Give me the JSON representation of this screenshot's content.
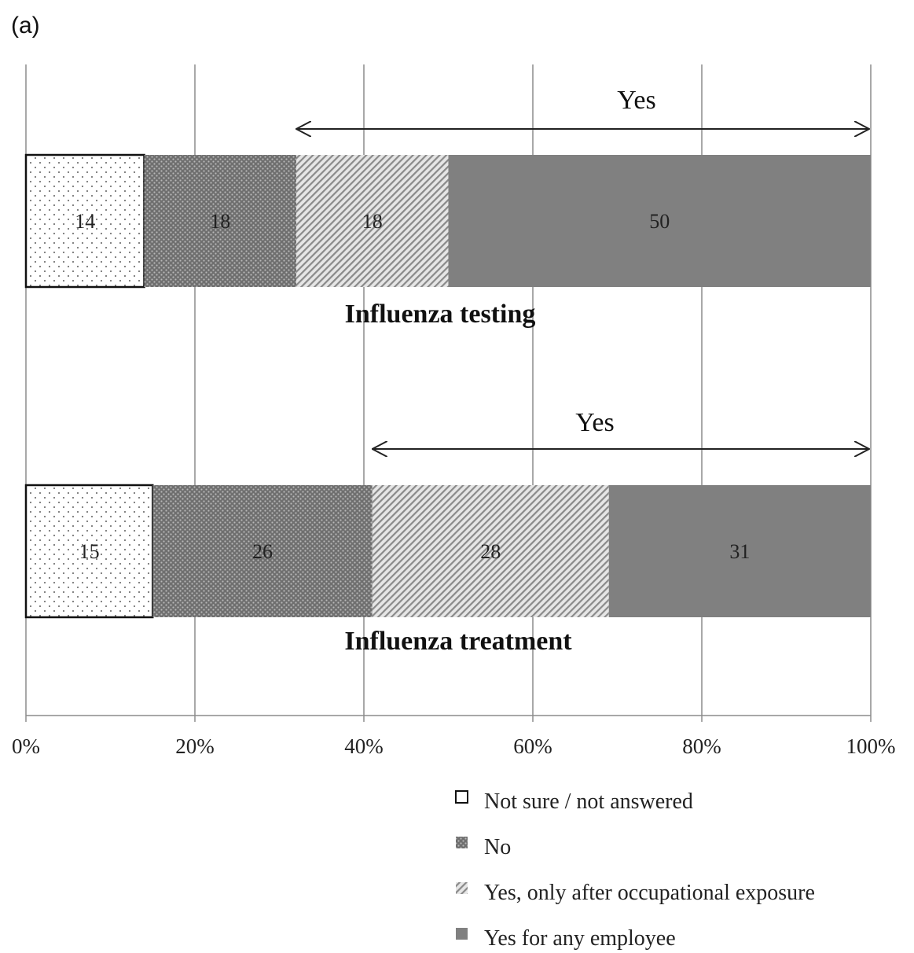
{
  "panel_label": "(a)",
  "chart_data": {
    "type": "bar",
    "orientation": "horizontal",
    "stacked": true,
    "normalized_percent": true,
    "title": "",
    "xlabel": "",
    "ylabel": "",
    "xlim": [
      0,
      100
    ],
    "x_ticks": [
      "0%",
      "20%",
      "40%",
      "60%",
      "80%",
      "100%"
    ],
    "grid": "vertical",
    "legend_position": "bottom-right",
    "categories": [
      "Influenza testing",
      "Influenza treatment"
    ],
    "series": [
      {
        "name": "Not sure / not answered",
        "pattern": "sparse-dots",
        "color": "#ffffff",
        "values": [
          14,
          15
        ]
      },
      {
        "name": "No",
        "pattern": "dense-dots",
        "color": "#7a7a7a",
        "values": [
          18,
          26
        ]
      },
      {
        "name": "Yes, only after occupational exposure",
        "pattern": "diagonal-hatch",
        "color": "#d8d8d8",
        "values": [
          18,
          28
        ]
      },
      {
        "name": "Yes for any employee",
        "pattern": "solid",
        "color": "#808080",
        "values": [
          50,
          31
        ]
      }
    ],
    "annotations": [
      {
        "category": "Influenza testing",
        "text": "Yes",
        "from": 32,
        "to": 100
      },
      {
        "category": "Influenza treatment",
        "text": "Yes",
        "from": 41,
        "to": 100
      }
    ]
  }
}
